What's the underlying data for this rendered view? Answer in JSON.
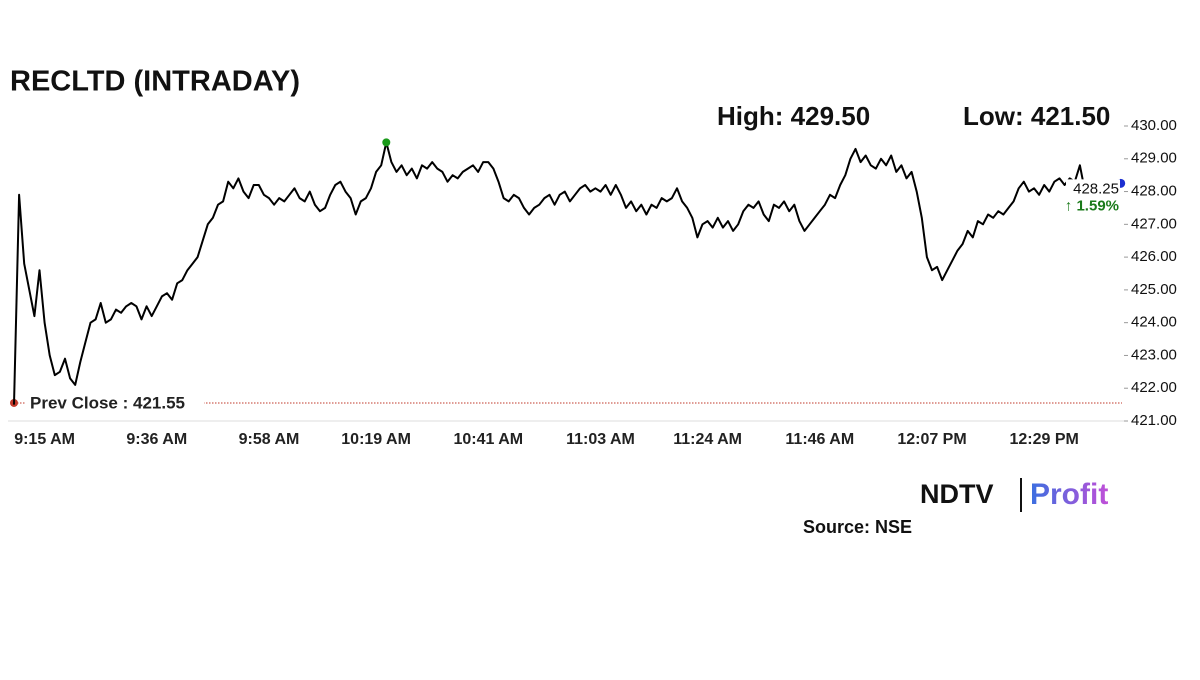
{
  "chart_data": {
    "type": "line",
    "title": "RECLTD (INTRADAY)",
    "high_label": "High: 429.50",
    "low_label": "Low: 421.50",
    "prev_close": {
      "value": 421.55,
      "label": "Prev Close : 421.55"
    },
    "change_label": "↑ 1.59%",
    "source": "Source: NSE",
    "logo": {
      "left": "NDTV",
      "right": "Profit"
    },
    "color": "#000000",
    "ylim": [
      421,
      430
    ],
    "yticks": [
      {
        "value": 421,
        "label": "421.00"
      },
      {
        "value": 422,
        "label": "422.00"
      },
      {
        "value": 423,
        "label": "423.00"
      },
      {
        "value": 424,
        "label": "424.00"
      },
      {
        "value": 425,
        "label": "425.00"
      },
      {
        "value": 426,
        "label": "426.00"
      },
      {
        "value": 427,
        "label": "427.00"
      },
      {
        "value": 428,
        "label": "428.00"
      },
      {
        "value": 429,
        "label": "429.00"
      },
      {
        "value": 430,
        "label": "430.00"
      }
    ],
    "categories": [
      null,
      null,
      null,
      null,
      null,
      null,
      "9:15 AM",
      null,
      null,
      null,
      null,
      null,
      null,
      null,
      null,
      null,
      null,
      null,
      null,
      null,
      null,
      null,
      null,
      null,
      null,
      null,
      null,
      null,
      "9:36 AM",
      null,
      null,
      null,
      null,
      null,
      null,
      null,
      null,
      null,
      null,
      null,
      null,
      null,
      null,
      null,
      null,
      null,
      null,
      null,
      null,
      null,
      "9:58 AM",
      null,
      null,
      null,
      null,
      null,
      null,
      null,
      null,
      null,
      null,
      null,
      null,
      null,
      null,
      null,
      null,
      null,
      null,
      null,
      null,
      "10:19 AM",
      null,
      null,
      null,
      null,
      null,
      null,
      null,
      null,
      null,
      null,
      null,
      null,
      null,
      null,
      null,
      null,
      null,
      null,
      null,
      null,
      null,
      "10:41 AM",
      null,
      null,
      null,
      null,
      null,
      null,
      null,
      null,
      null,
      null,
      null,
      null,
      null,
      null,
      null,
      null,
      null,
      null,
      null,
      null,
      null,
      "11:03 AM",
      null,
      null,
      null,
      null,
      null,
      null,
      null,
      null,
      null,
      null,
      null,
      null,
      null,
      null,
      null,
      null,
      null,
      null,
      null,
      null,
      "11:24 AM",
      null,
      null,
      null,
      null,
      null,
      null,
      null,
      null,
      null,
      null,
      null,
      null,
      null,
      null,
      null,
      null,
      null,
      null,
      null,
      null,
      null,
      "11:46 AM",
      null,
      null,
      null,
      null,
      null,
      null,
      null,
      null,
      null,
      null,
      null,
      null,
      null,
      null,
      null,
      null,
      null,
      null,
      null,
      null,
      null,
      "12:07 PM",
      null,
      null,
      null,
      null,
      null,
      null,
      null,
      null,
      null,
      null,
      null,
      null,
      null,
      null,
      null,
      null,
      null,
      null,
      null,
      null,
      null,
      "12:29 PM",
      null,
      null,
      null,
      null,
      null,
      null,
      null,
      null,
      null,
      null,
      null,
      null,
      null,
      null,
      null
    ],
    "values": [
      421.5,
      427.9,
      425.8,
      425.0,
      424.2,
      425.6,
      424.0,
      423.0,
      422.4,
      422.5,
      422.9,
      422.3,
      422.1,
      422.8,
      423.4,
      424.0,
      424.1,
      424.6,
      424.0,
      424.1,
      424.4,
      424.3,
      424.5,
      424.6,
      424.5,
      424.1,
      424.5,
      424.2,
      424.5,
      424.8,
      424.9,
      424.7,
      425.2,
      425.3,
      425.6,
      425.8,
      426.0,
      426.5,
      427.0,
      427.2,
      427.6,
      427.7,
      428.3,
      428.1,
      428.4,
      428.0,
      427.8,
      428.2,
      428.2,
      427.9,
      427.8,
      427.6,
      427.8,
      427.7,
      427.9,
      428.1,
      427.8,
      427.7,
      428.0,
      427.6,
      427.4,
      427.5,
      427.9,
      428.2,
      428.3,
      428.0,
      427.8,
      427.3,
      427.7,
      427.8,
      428.1,
      428.6,
      428.8,
      429.5,
      428.9,
      428.6,
      428.8,
      428.5,
      428.7,
      428.4,
      428.8,
      428.7,
      428.9,
      428.7,
      428.6,
      428.3,
      428.5,
      428.4,
      428.6,
      428.7,
      428.8,
      428.6,
      428.9,
      428.9,
      428.7,
      428.3,
      427.8,
      427.7,
      427.9,
      427.8,
      427.5,
      427.3,
      427.5,
      427.6,
      427.8,
      427.9,
      427.6,
      427.9,
      428.0,
      427.7,
      427.9,
      428.1,
      428.2,
      428.0,
      428.1,
      428.0,
      428.2,
      427.9,
      428.2,
      427.9,
      427.5,
      427.7,
      427.4,
      427.6,
      427.3,
      427.6,
      427.5,
      427.8,
      427.7,
      427.8,
      428.1,
      427.7,
      427.5,
      427.2,
      426.6,
      427.0,
      427.1,
      426.9,
      427.2,
      426.9,
      427.1,
      426.8,
      427.0,
      427.4,
      427.6,
      427.5,
      427.7,
      427.3,
      427.1,
      427.6,
      427.5,
      427.7,
      427.4,
      427.6,
      427.1,
      426.8,
      427.0,
      427.2,
      427.4,
      427.6,
      427.9,
      427.8,
      428.2,
      428.5,
      429.0,
      429.3,
      428.9,
      429.1,
      428.8,
      428.7,
      429.0,
      428.8,
      429.1,
      428.6,
      428.8,
      428.4,
      428.6,
      428.0,
      427.2,
      426.0,
      425.6,
      425.7,
      425.3,
      425.6,
      425.9,
      426.2,
      426.4,
      426.8,
      426.6,
      427.1,
      427.0,
      427.3,
      427.2,
      427.4,
      427.3,
      427.5,
      427.7,
      428.1,
      428.3,
      428.0,
      428.1,
      427.9,
      428.2,
      428.0,
      428.3,
      428.4,
      428.2,
      428.4,
      428.3,
      428.8,
      428.0,
      null,
      428.2,
      428.3,
      428.2,
      428.3,
      428.3,
      428.25
    ]
  }
}
